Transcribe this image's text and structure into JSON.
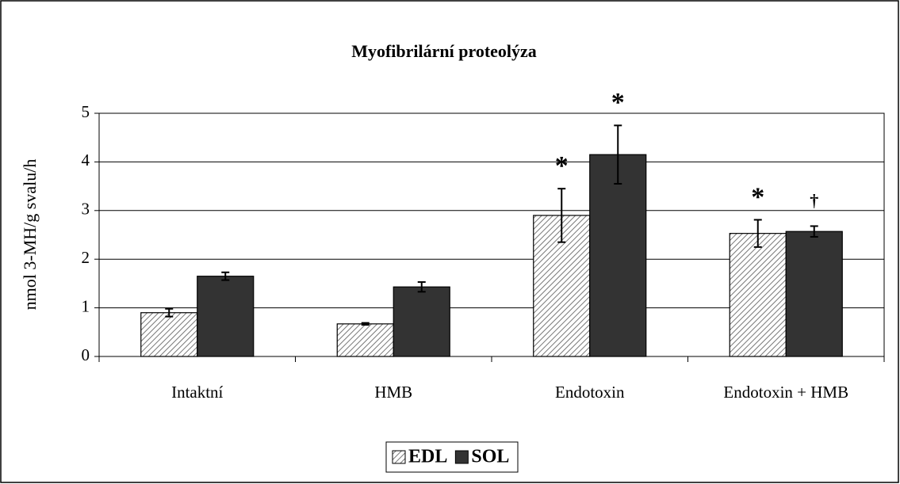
{
  "chart_data": {
    "type": "bar",
    "title": "Myofibrilární proteolýza",
    "ylabel": "nmol 3-MH/g svalu/h",
    "categories": [
      "Intaktní",
      "HMB",
      "Endotoxin",
      "Endotoxin + HMB"
    ],
    "series": [
      {
        "name": "EDL",
        "color": "#888888",
        "hatch": true,
        "values": [
          0.9,
          0.67,
          2.9,
          2.53
        ],
        "errors": [
          0.08,
          0.02,
          0.55,
          0.28
        ],
        "markers": [
          null,
          null,
          "*",
          "*"
        ]
      },
      {
        "name": "SOL",
        "color": "#333333",
        "hatch": false,
        "values": [
          1.65,
          1.43,
          4.15,
          2.57
        ],
        "errors": [
          0.08,
          0.1,
          0.6,
          0.11
        ],
        "markers": [
          null,
          null,
          "*",
          "†"
        ]
      }
    ],
    "ylim": [
      0,
      5
    ],
    "yticks": [
      0,
      1,
      2,
      3,
      4,
      5
    ],
    "grid": true,
    "legend": "bottom"
  }
}
